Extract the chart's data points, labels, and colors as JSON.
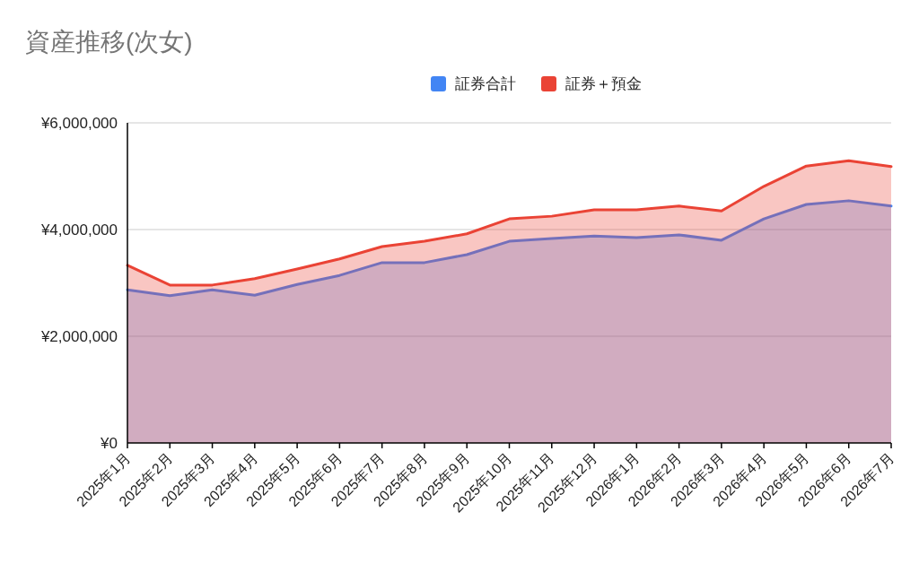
{
  "chart_data": {
    "type": "area",
    "title": "資産推移(次女)",
    "categories": [
      "2025年1月",
      "2025年2月",
      "2025年3月",
      "2025年4月",
      "2025年5月",
      "2025年6月",
      "2025年7月",
      "2025年8月",
      "2025年9月",
      "2025年10月",
      "2025年11月",
      "2025年12月",
      "2026年1月",
      "2026年2月",
      "2026年3月",
      "2026年4月",
      "2026年5月",
      "2026年6月",
      "2026年7月"
    ],
    "series": [
      {
        "name": "証券合計",
        "color": "#4285f4",
        "values": [
          2870000,
          2760000,
          2870000,
          2770000,
          2970000,
          3140000,
          3380000,
          3380000,
          3530000,
          3780000,
          3830000,
          3880000,
          3850000,
          3900000,
          3800000,
          4200000,
          4470000,
          4540000,
          4440000
        ]
      },
      {
        "name": "証券＋預金",
        "color": "#ea4335",
        "values": [
          3330000,
          2960000,
          2960000,
          3080000,
          3260000,
          3450000,
          3680000,
          3780000,
          3920000,
          4200000,
          4250000,
          4370000,
          4370000,
          4440000,
          4350000,
          4810000,
          5190000,
          5290000,
          5180000
        ]
      }
    ],
    "ylim": [
      0,
      6000000
    ],
    "yticks": [
      {
        "value": 0,
        "label": "¥0"
      },
      {
        "value": 2000000,
        "label": "¥2,000,000"
      },
      {
        "value": 4000000,
        "label": "¥4,000,000"
      },
      {
        "value": 6000000,
        "label": "¥6,000,000"
      }
    ],
    "grid": "y",
    "legend": "top"
  }
}
